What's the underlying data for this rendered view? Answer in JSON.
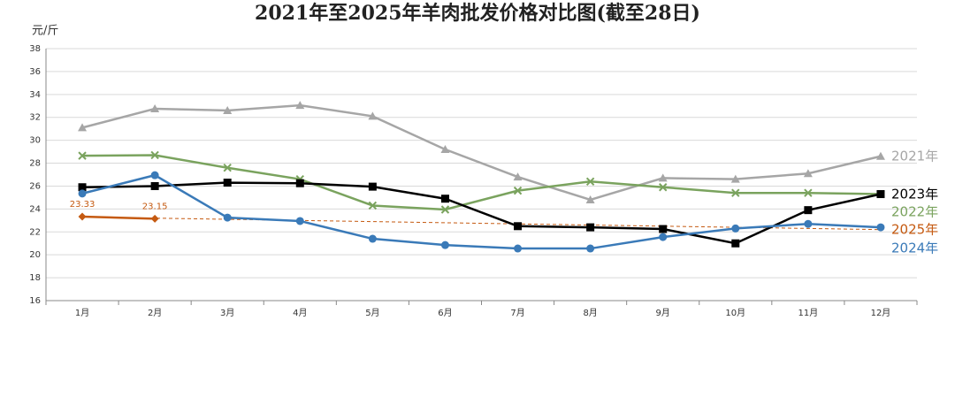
{
  "chart_data": {
    "type": "line",
    "title": "2021年至2025年羊肉批发价格对比图(截至28日)",
    "y_axis_label": "元/斤",
    "categories": [
      "1月",
      "2月",
      "3月",
      "4月",
      "5月",
      "6月",
      "7月",
      "8月",
      "9月",
      "10月",
      "11月",
      "12月"
    ],
    "series": [
      {
        "name": "2021年",
        "color": "#a6a6a6",
        "marker": "triangle",
        "values": [
          31.1,
          32.75,
          32.6,
          33.05,
          32.1,
          29.2,
          26.8,
          24.8,
          26.7,
          26.6,
          27.1,
          28.6
        ]
      },
      {
        "name": "2022年",
        "color": "#7aa35e",
        "marker": "x",
        "values": [
          28.65,
          28.7,
          27.6,
          26.6,
          24.3,
          23.95,
          25.6,
          26.4,
          25.9,
          25.4,
          25.4,
          25.3
        ]
      },
      {
        "name": "2023年",
        "color": "#000000",
        "marker": "square",
        "values": [
          25.9,
          26.0,
          26.3,
          26.25,
          25.95,
          24.9,
          22.5,
          22.4,
          22.25,
          21.0,
          23.9,
          25.3
        ]
      },
      {
        "name": "2024年",
        "color": "#3a7ab8",
        "marker": "circle",
        "values": [
          25.35,
          26.95,
          23.25,
          22.95,
          21.4,
          20.85,
          20.55,
          20.55,
          21.55,
          22.3,
          22.7,
          22.4
        ]
      },
      {
        "name": "2025年",
        "color": "#c55a11",
        "marker": "diamond",
        "values": [
          23.33,
          23.15,
          null,
          null,
          null,
          null,
          null,
          null,
          null,
          null,
          null,
          null
        ]
      }
    ],
    "trend_line": {
      "color": "#c55a11",
      "values": [
        23.3,
        22.2
      ]
    },
    "ylim": [
      16,
      38
    ],
    "yticks": [
      16,
      18,
      20,
      22,
      24,
      26,
      28,
      30,
      32,
      34,
      36,
      38
    ],
    "grid": true
  }
}
